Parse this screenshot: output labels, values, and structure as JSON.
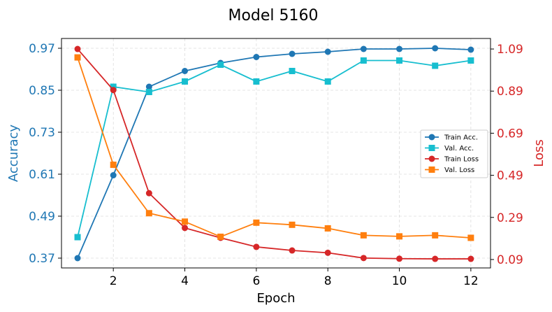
{
  "chart_data": {
    "type": "line",
    "title": "Model 5160",
    "xlabel": "Epoch",
    "ylabel_left": "Accuracy",
    "ylabel_right": "Loss",
    "x": [
      1,
      2,
      3,
      4,
      5,
      6,
      7,
      8,
      9,
      10,
      11,
      12
    ],
    "xticks": [
      "2",
      "4",
      "6",
      "8",
      "10",
      "12"
    ],
    "xlim": [
      0.55,
      12.55
    ],
    "yticks_left": [
      "0.37",
      "0.49",
      "0.61",
      "0.73",
      "0.85",
      "0.97"
    ],
    "ylim_left": [
      0.342,
      0.998
    ],
    "yticks_right": [
      "0.09",
      "0.29",
      "0.49",
      "0.69",
      "0.89",
      "1.09"
    ],
    "ylim_right": [
      0.05,
      1.14
    ],
    "grid": true,
    "legend_position": "center-right",
    "series": [
      {
        "name": "Train Acc.",
        "axis": "left",
        "marker": "circle",
        "color": "#1f77b4",
        "values": [
          0.37,
          0.607,
          0.86,
          0.905,
          0.928,
          0.945,
          0.954,
          0.96,
          0.968,
          0.968,
          0.97,
          0.966
        ]
      },
      {
        "name": "Val. Acc.",
        "axis": "left",
        "marker": "square",
        "color": "#17becf",
        "values": [
          0.43,
          0.86,
          0.845,
          0.875,
          0.923,
          0.875,
          0.905,
          0.875,
          0.935,
          0.935,
          0.92,
          0.935
        ]
      },
      {
        "name": "Train Loss",
        "axis": "right",
        "marker": "circle",
        "color": "#d62728",
        "values": [
          1.09,
          0.895,
          0.405,
          0.24,
          0.193,
          0.15,
          0.133,
          0.122,
          0.097,
          0.094,
          0.093,
          0.093
        ]
      },
      {
        "name": "Val. Loss",
        "axis": "right",
        "marker": "square",
        "color": "#ff7f0e",
        "values": [
          1.05,
          0.54,
          0.31,
          0.27,
          0.198,
          0.265,
          0.255,
          0.238,
          0.205,
          0.2,
          0.205,
          0.193
        ]
      }
    ],
    "colors": {
      "left_axis": "#1f77b4",
      "right_axis": "#d62728"
    }
  }
}
